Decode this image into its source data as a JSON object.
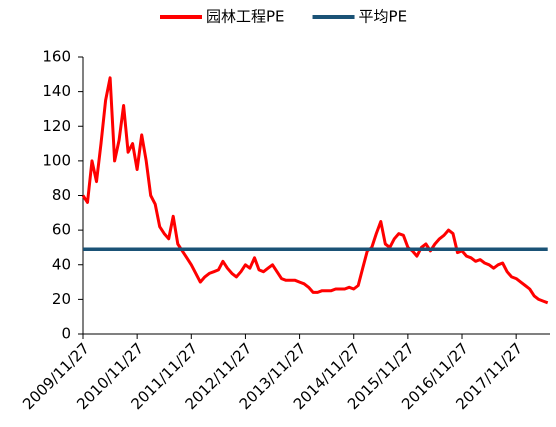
{
  "chart_data": {
    "type": "line",
    "categories": [
      "2009/11/27",
      null,
      null,
      null,
      null,
      null,
      null,
      null,
      null,
      null,
      null,
      null,
      "2010/11/27",
      null,
      null,
      null,
      null,
      null,
      null,
      null,
      null,
      null,
      null,
      null,
      "2011/11/27",
      null,
      null,
      null,
      null,
      null,
      null,
      null,
      null,
      null,
      null,
      null,
      "2012/11/27",
      null,
      null,
      null,
      null,
      null,
      null,
      null,
      null,
      null,
      null,
      null,
      "2013/11/27",
      null,
      null,
      null,
      null,
      null,
      null,
      null,
      null,
      null,
      null,
      null,
      "2014/11/27",
      null,
      null,
      null,
      null,
      null,
      null,
      null,
      null,
      null,
      null,
      null,
      "2015/11/27",
      null,
      null,
      null,
      null,
      null,
      null,
      null,
      null,
      null,
      null,
      null,
      "2016/11/27",
      null,
      null,
      null,
      null,
      null,
      null,
      null,
      null,
      null,
      null,
      null,
      "2017/11/27",
      null,
      null,
      null,
      null,
      null,
      null,
      null
    ],
    "series": [
      {
        "name": "园林工程PE",
        "color": "#ff0000",
        "values": [
          80,
          76,
          100,
          88,
          110,
          135,
          148,
          100,
          112,
          132,
          105,
          110,
          95,
          115,
          100,
          80,
          75,
          62,
          58,
          55,
          68,
          52,
          48,
          44,
          40,
          35,
          30,
          33,
          35,
          36,
          37,
          42,
          38,
          35,
          33,
          36,
          40,
          38,
          44,
          37,
          36,
          38,
          40,
          36,
          32,
          31,
          31,
          31,
          30,
          29,
          27,
          24,
          24,
          25,
          25,
          25,
          26,
          26,
          26,
          27,
          26,
          28,
          38,
          48,
          50,
          58,
          65,
          52,
          50,
          55,
          58,
          57,
          50,
          48,
          45,
          50,
          52,
          48,
          52,
          55,
          57,
          60,
          58,
          47,
          48,
          45,
          44,
          42,
          43,
          41,
          40,
          38,
          40,
          41,
          36,
          33,
          32,
          30,
          28,
          26,
          22,
          20,
          19,
          18
        ]
      },
      {
        "name": "平均PE",
        "color": "#1a5276",
        "values": [
          49,
          49,
          49,
          49,
          49,
          49,
          49,
          49,
          49,
          49,
          49,
          49,
          49,
          49,
          49,
          49,
          49,
          49,
          49,
          49,
          49,
          49,
          49,
          49,
          49,
          49,
          49,
          49,
          49,
          49,
          49,
          49,
          49,
          49,
          49,
          49,
          49,
          49,
          49,
          49,
          49,
          49,
          49,
          49,
          49,
          49,
          49,
          49,
          49,
          49,
          49,
          49,
          49,
          49,
          49,
          49,
          49,
          49,
          49,
          49,
          49,
          49,
          49,
          49,
          49,
          49,
          49,
          49,
          49,
          49,
          49,
          49,
          49,
          49,
          49,
          49,
          49,
          49,
          49,
          49,
          49,
          49,
          49,
          49,
          49,
          49,
          49,
          49,
          49,
          49,
          49,
          49,
          49,
          49,
          49,
          49,
          49,
          49,
          49,
          49,
          49,
          49,
          49,
          49
        ]
      }
    ],
    "ylim": [
      0,
      160
    ],
    "yticks": [
      0,
      20,
      40,
      60,
      80,
      100,
      120,
      140,
      160
    ],
    "grid": false,
    "legend": "top"
  }
}
